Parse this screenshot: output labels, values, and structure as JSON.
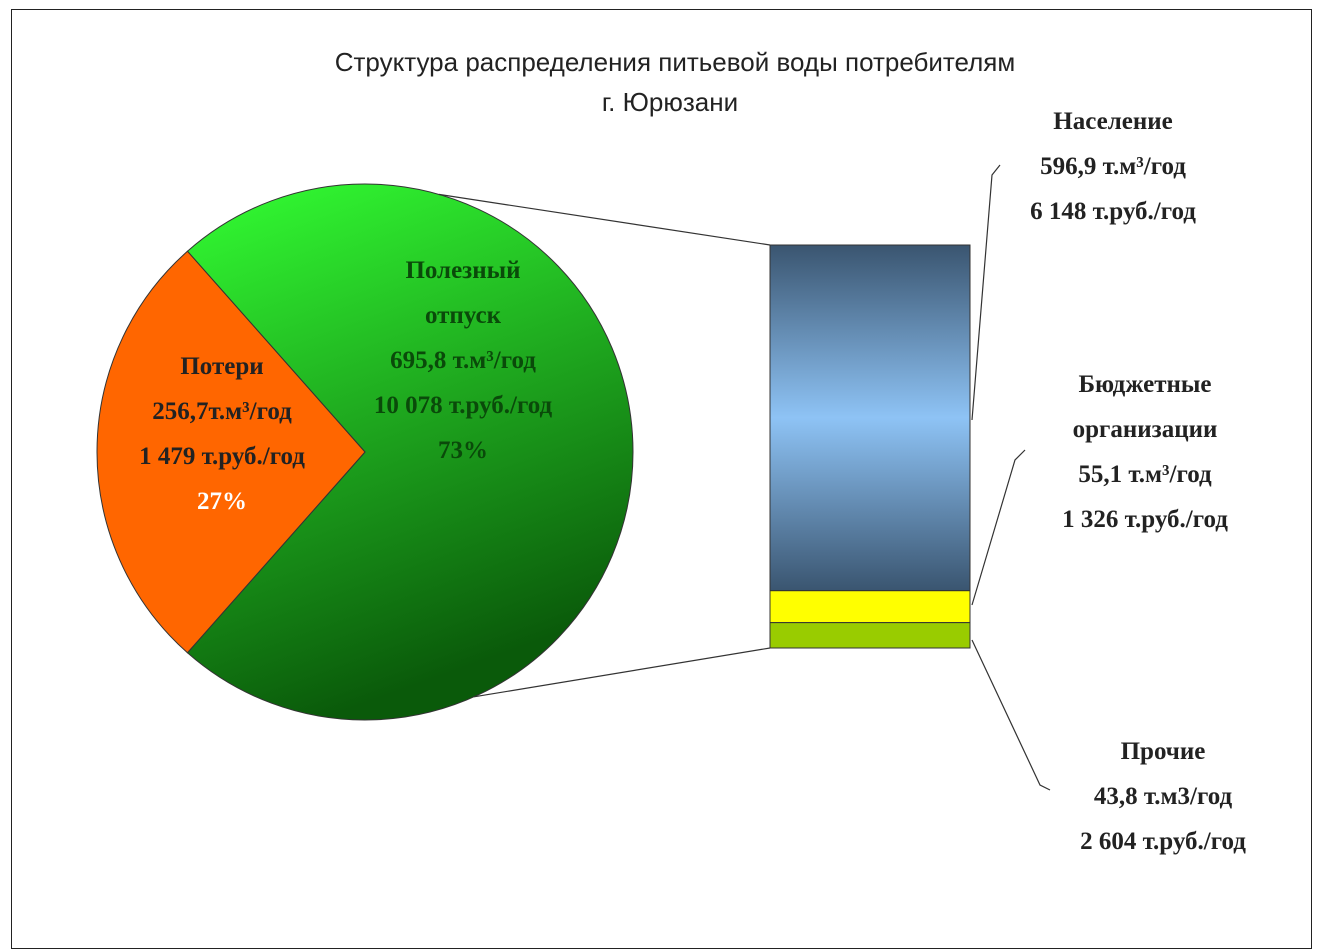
{
  "chart_data": {
    "type": "pie-of-bar",
    "title": [
      "Структура распределения питьевой воды потребителям",
      "г. Юрюзани"
    ],
    "pie": {
      "categories": [
        "Потери",
        "Полезный отпуск"
      ],
      "values": [
        256.7,
        695.8
      ],
      "value_labels": [
        "256,7т.м³/год",
        "695,8 т.м³/год"
      ],
      "cost": [
        1479,
        10078
      ],
      "cost_labels": [
        "1 479 т.руб./год",
        "10 078 т.руб./год"
      ],
      "percent": [
        27,
        73
      ],
      "percent_labels": [
        "27%",
        "73%"
      ],
      "colors": [
        "#ff6600",
        "#22cc22"
      ]
    },
    "bar": {
      "categories": [
        "Население",
        "Бюджетные организации",
        "Прочие"
      ],
      "values": [
        596.9,
        55.1,
        43.8
      ],
      "value_labels": [
        "596,9 т.м³/год",
        "55,1 т.м³/год",
        "43,8 т.м3/год"
      ],
      "cost": [
        6148,
        1326,
        2604
      ],
      "cost_labels": [
        "6 148 т.руб./год",
        "1 326 т.руб./год",
        "2 604 т.руб./год"
      ],
      "colors": [
        "#8ec3f5",
        "#ffff00",
        "#99cc00"
      ]
    }
  }
}
